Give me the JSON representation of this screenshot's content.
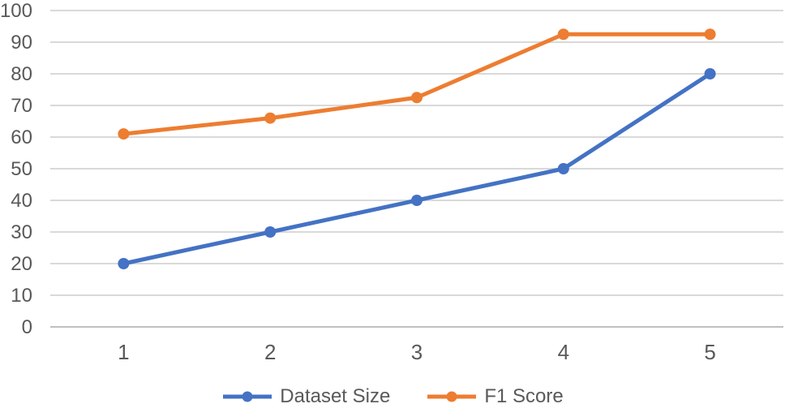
{
  "chart_data": {
    "type": "line",
    "x": [
      1,
      2,
      3,
      4,
      5
    ],
    "xticks": [
      "1",
      "2",
      "3",
      "4",
      "5"
    ],
    "yticks": [
      "0",
      "10",
      "20",
      "30",
      "40",
      "50",
      "60",
      "70",
      "80",
      "90",
      "100"
    ],
    "ylim": [
      0,
      100
    ],
    "ytick_step": 10,
    "grid": true,
    "title": "",
    "xlabel": "",
    "ylabel": "",
    "legend_position": "bottom-center",
    "series": [
      {
        "name": "Dataset Size",
        "color": "#4472C4",
        "values": [
          20,
          30,
          40,
          50,
          80
        ]
      },
      {
        "name": "F1 Score",
        "color": "#ED7D31",
        "values": [
          61,
          66,
          72.5,
          92.5,
          92.5
        ]
      }
    ]
  },
  "colors": {
    "gridline": "#D9D9D9",
    "axis_line": "#BFBFBF",
    "tick_text": "#595959",
    "legend_text": "#595959",
    "background": "#FFFFFF"
  }
}
